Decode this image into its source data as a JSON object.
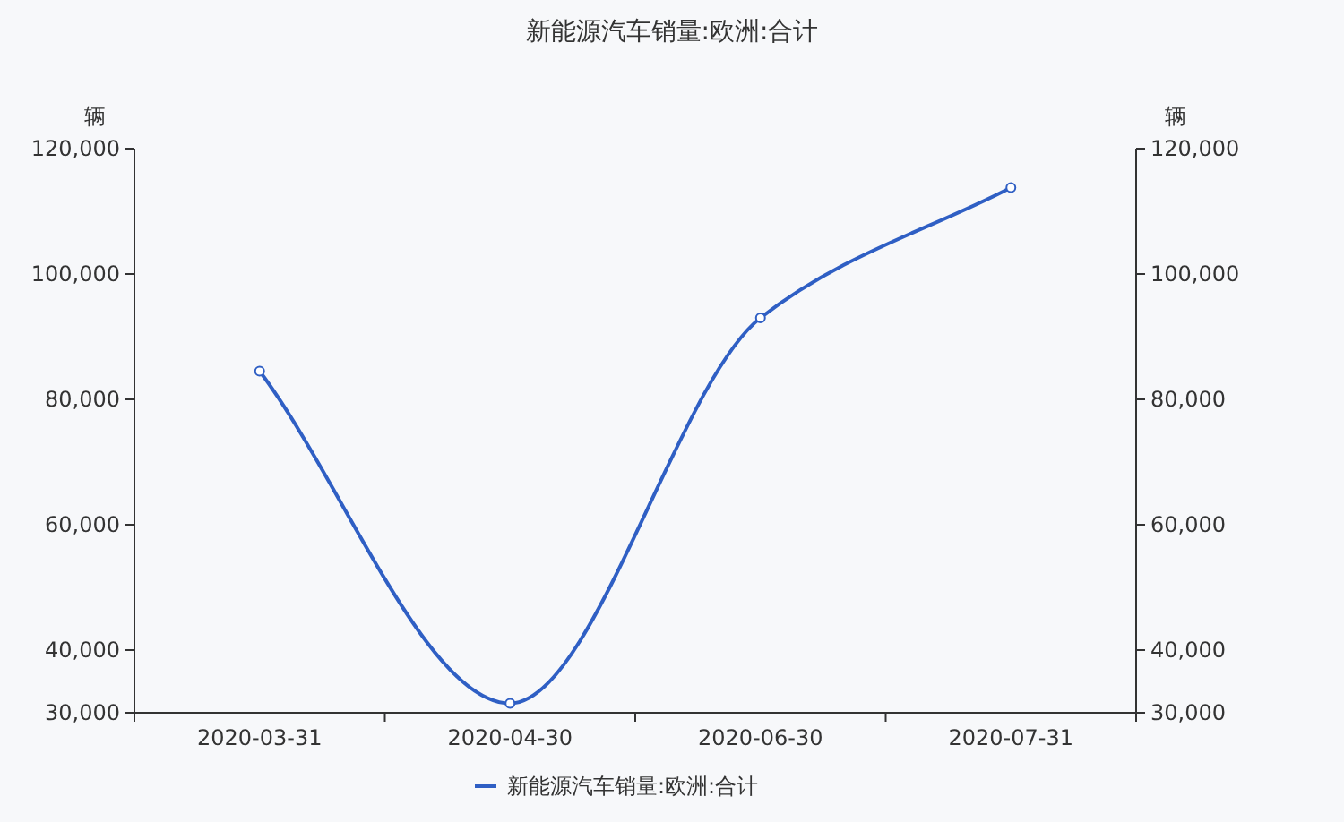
{
  "chart_data": {
    "type": "line",
    "title": "新能源汽车销量:欧洲:合计",
    "ylabel": "辆",
    "y2label": "辆",
    "categories": [
      "2020-03-31",
      "2020-04-30",
      "2020-06-30",
      "2020-07-31"
    ],
    "series": [
      {
        "name": "新能源汽车销量:欧洲:合计",
        "color": "#2f5fc4",
        "values": [
          84500,
          31500,
          93000,
          113800
        ]
      }
    ],
    "ylim": [
      30000,
      120000
    ],
    "yticks": [
      {
        "value": 30000,
        "label": "30,000"
      },
      {
        "value": 40000,
        "label": "40,000"
      },
      {
        "value": 60000,
        "label": "60,000"
      },
      {
        "value": 80000,
        "label": "80,000"
      },
      {
        "value": 100000,
        "label": "100,000"
      },
      {
        "value": 120000,
        "label": "120,000"
      }
    ],
    "y2lim": [
      30000,
      120000
    ],
    "y2ticks": [
      {
        "value": 30000,
        "label": "30,000"
      },
      {
        "value": 40000,
        "label": "40,000"
      },
      {
        "value": 60000,
        "label": "60,000"
      },
      {
        "value": 80000,
        "label": "80,000"
      },
      {
        "value": 100000,
        "label": "100,000"
      },
      {
        "value": 120000,
        "label": "120,000"
      }
    ],
    "grid": false,
    "legend": "bottom",
    "marker": "circle",
    "line_style": "solid"
  }
}
